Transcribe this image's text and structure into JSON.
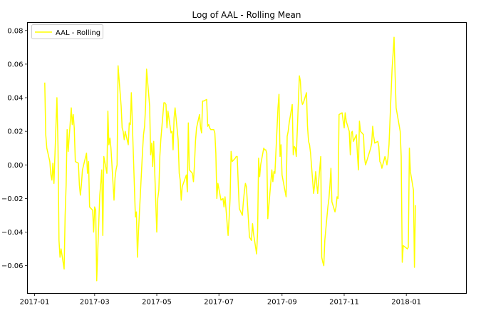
{
  "chart_data": {
    "type": "line",
    "title": "Log of AAL - Rolling Mean",
    "xlabel": "",
    "ylabel": "",
    "x_axis": {
      "type": "date",
      "range": [
        "2016-12-25",
        "2018-03-01"
      ],
      "ticks": [
        "2017-01-01",
        "2017-03-01",
        "2017-05-01",
        "2017-07-01",
        "2017-09-01",
        "2017-11-01",
        "2018-01-01"
      ],
      "tick_labels": [
        "2017-01",
        "2017-03",
        "2017-05",
        "2017-07",
        "2017-09",
        "2017-11",
        "2018-01"
      ]
    },
    "y_axis": {
      "range": [
        -0.0765,
        0.0848
      ],
      "ticks": [
        -0.06,
        -0.04,
        -0.02,
        0.0,
        0.02,
        0.04,
        0.06,
        0.08
      ],
      "tick_labels": [
        "−0.06",
        "−0.04",
        "−0.02",
        "0.00",
        "0.02",
        "0.04",
        "0.06",
        "0.08"
      ]
    },
    "grid": false,
    "legend": {
      "position": "upper left"
    },
    "series": [
      {
        "name": "AAL - Rolling",
        "color": "#ffff00",
        "points": [
          [
            "2017-01-11",
            0.049
          ],
          [
            "2017-01-12",
            0.018
          ],
          [
            "2017-01-13",
            0.01
          ],
          [
            "2017-01-16",
            0.002
          ],
          [
            "2017-01-17",
            -0.006
          ],
          [
            "2017-01-18",
            -0.009
          ],
          [
            "2017-01-19",
            0.001
          ],
          [
            "2017-01-20",
            -0.011
          ],
          [
            "2017-01-23",
            0.04
          ],
          [
            "2017-01-24",
            0.011
          ],
          [
            "2017-01-25",
            -0.045
          ],
          [
            "2017-01-26",
            -0.055
          ],
          [
            "2017-01-27",
            -0.05
          ],
          [
            "2017-01-30",
            -0.062
          ],
          [
            "2017-01-31",
            -0.03
          ],
          [
            "2017-02-01",
            -0.012
          ],
          [
            "2017-02-02",
            0.021
          ],
          [
            "2017-02-03",
            0.008
          ],
          [
            "2017-02-06",
            0.034
          ],
          [
            "2017-02-07",
            0.024
          ],
          [
            "2017-02-08",
            0.03
          ],
          [
            "2017-02-09",
            0.022
          ],
          [
            "2017-02-10",
            0.002
          ],
          [
            "2017-02-13",
            0.001
          ],
          [
            "2017-02-14",
            -0.012
          ],
          [
            "2017-02-15",
            -0.018
          ],
          [
            "2017-02-16",
            -0.012
          ],
          [
            "2017-02-17",
            -0.003
          ],
          [
            "2017-02-21",
            0.007
          ],
          [
            "2017-02-22",
            -0.005
          ],
          [
            "2017-02-23",
            0.002
          ],
          [
            "2017-02-24",
            -0.025
          ],
          [
            "2017-02-27",
            -0.027
          ],
          [
            "2017-02-28",
            -0.04
          ],
          [
            "2017-03-01",
            -0.025
          ],
          [
            "2017-03-02",
            -0.027
          ],
          [
            "2017-03-03",
            -0.069
          ],
          [
            "2017-03-06",
            -0.018
          ],
          [
            "2017-03-07",
            -0.011
          ],
          [
            "2017-03-08",
            -0.003
          ],
          [
            "2017-03-09",
            -0.042
          ],
          [
            "2017-03-10",
            0.005
          ],
          [
            "2017-03-13",
            -0.005
          ],
          [
            "2017-03-14",
            0.032
          ],
          [
            "2017-03-15",
            0.012
          ],
          [
            "2017-03-16",
            0.016
          ],
          [
            "2017-03-17",
            0.01
          ],
          [
            "2017-03-20",
            -0.021
          ],
          [
            "2017-03-21",
            -0.008
          ],
          [
            "2017-03-22",
            -0.003
          ],
          [
            "2017-03-23",
            0.0
          ],
          [
            "2017-03-24",
            0.059
          ],
          [
            "2017-03-27",
            0.035
          ],
          [
            "2017-03-28",
            0.022
          ],
          [
            "2017-03-29",
            0.02
          ],
          [
            "2017-03-30",
            0.015
          ],
          [
            "2017-03-31",
            0.02
          ],
          [
            "2017-04-03",
            0.012
          ],
          [
            "2017-04-04",
            0.025
          ],
          [
            "2017-04-05",
            0.024
          ],
          [
            "2017-04-06",
            0.043
          ],
          [
            "2017-04-07",
            0.025
          ],
          [
            "2017-04-10",
            -0.031
          ],
          [
            "2017-04-11",
            -0.028
          ],
          [
            "2017-04-12",
            -0.055
          ],
          [
            "2017-04-13",
            -0.04
          ],
          [
            "2017-04-17",
            0.008
          ],
          [
            "2017-04-18",
            0.018
          ],
          [
            "2017-04-19",
            0.023
          ],
          [
            "2017-04-20",
            0.035
          ],
          [
            "2017-04-21",
            0.057
          ],
          [
            "2017-04-24",
            0.035
          ],
          [
            "2017-04-25",
            0.006
          ],
          [
            "2017-04-26",
            0.013
          ],
          [
            "2017-04-27",
            -0.001
          ],
          [
            "2017-04-28",
            0.014
          ],
          [
            "2017-05-01",
            -0.04
          ],
          [
            "2017-05-02",
            -0.02
          ],
          [
            "2017-05-03",
            -0.015
          ],
          [
            "2017-05-04",
            0.005
          ],
          [
            "2017-05-05",
            0.015
          ],
          [
            "2017-05-08",
            0.037
          ],
          [
            "2017-05-09",
            0.037
          ],
          [
            "2017-05-10",
            0.036
          ],
          [
            "2017-05-11",
            0.022
          ],
          [
            "2017-05-12",
            0.032
          ],
          [
            "2017-05-15",
            0.019
          ],
          [
            "2017-05-16",
            0.02
          ],
          [
            "2017-05-17",
            0.009
          ],
          [
            "2017-05-18",
            0.028
          ],
          [
            "2017-05-19",
            0.034
          ],
          [
            "2017-05-22",
            0.015
          ],
          [
            "2017-05-23",
            -0.005
          ],
          [
            "2017-05-24",
            -0.009
          ],
          [
            "2017-05-25",
            -0.021
          ],
          [
            "2017-05-26",
            -0.013
          ],
          [
            "2017-05-30",
            -0.006
          ],
          [
            "2017-05-31",
            -0.016
          ],
          [
            "2017-06-01",
            0.025
          ],
          [
            "2017-06-02",
            -0.003
          ],
          [
            "2017-06-05",
            -0.005
          ],
          [
            "2017-06-06",
            -0.01
          ],
          [
            "2017-06-07",
            0.0
          ],
          [
            "2017-06-08",
            0.014
          ],
          [
            "2017-06-09",
            0.022
          ],
          [
            "2017-06-12",
            0.03
          ],
          [
            "2017-06-13",
            0.022
          ],
          [
            "2017-06-14",
            0.019
          ],
          [
            "2017-06-15",
            0.038
          ],
          [
            "2017-06-16",
            0.038
          ],
          [
            "2017-06-19",
            0.039
          ],
          [
            "2017-06-20",
            0.023
          ],
          [
            "2017-06-21",
            0.024
          ],
          [
            "2017-06-22",
            0.022
          ],
          [
            "2017-06-23",
            0.021
          ],
          [
            "2017-06-26",
            0.021
          ],
          [
            "2017-06-27",
            0.019
          ],
          [
            "2017-06-28",
            0.007
          ],
          [
            "2017-06-29",
            -0.02
          ],
          [
            "2017-06-30",
            -0.011
          ],
          [
            "2017-07-03",
            -0.021
          ],
          [
            "2017-07-05",
            -0.02
          ],
          [
            "2017-07-06",
            -0.025
          ],
          [
            "2017-07-07",
            -0.019
          ],
          [
            "2017-07-10",
            -0.042
          ],
          [
            "2017-07-11",
            -0.032
          ],
          [
            "2017-07-12",
            -0.02
          ],
          [
            "2017-07-13",
            0.008
          ],
          [
            "2017-07-14",
            0.002
          ],
          [
            "2017-07-17",
            0.004
          ],
          [
            "2017-07-18",
            0.005
          ],
          [
            "2017-07-19",
            0.005
          ],
          [
            "2017-07-20",
            -0.012
          ],
          [
            "2017-07-21",
            -0.026
          ],
          [
            "2017-07-24",
            -0.03
          ],
          [
            "2017-07-25",
            -0.022
          ],
          [
            "2017-07-26",
            -0.016
          ],
          [
            "2017-07-27",
            -0.011
          ],
          [
            "2017-07-28",
            -0.013
          ],
          [
            "2017-07-31",
            -0.043
          ],
          [
            "2017-08-01",
            -0.044
          ],
          [
            "2017-08-02",
            -0.045
          ],
          [
            "2017-08-03",
            -0.035
          ],
          [
            "2017-08-04",
            -0.041
          ],
          [
            "2017-08-07",
            -0.053
          ],
          [
            "2017-08-08",
            -0.04
          ],
          [
            "2017-08-09",
            0.004
          ],
          [
            "2017-08-10",
            -0.007
          ],
          [
            "2017-08-11",
            0.0
          ],
          [
            "2017-08-14",
            0.01
          ],
          [
            "2017-08-15",
            0.009
          ],
          [
            "2017-08-16",
            0.009
          ],
          [
            "2017-08-17",
            0.007
          ],
          [
            "2017-08-18",
            -0.032
          ],
          [
            "2017-08-21",
            -0.01
          ],
          [
            "2017-08-22",
            -0.003
          ],
          [
            "2017-08-23",
            -0.01
          ],
          [
            "2017-08-24",
            -0.004
          ],
          [
            "2017-08-25",
            -0.005
          ],
          [
            "2017-08-28",
            0.034
          ],
          [
            "2017-08-29",
            0.042
          ],
          [
            "2017-08-30",
            0.005
          ],
          [
            "2017-08-31",
            0.012
          ],
          [
            "2017-09-01",
            -0.006
          ],
          [
            "2017-09-05",
            -0.019
          ],
          [
            "2017-09-06",
            0.017
          ],
          [
            "2017-09-07",
            0.02
          ],
          [
            "2017-09-08",
            0.025
          ],
          [
            "2017-09-11",
            0.036
          ],
          [
            "2017-09-12",
            0.006
          ],
          [
            "2017-09-13",
            0.011
          ],
          [
            "2017-09-14",
            0.01
          ],
          [
            "2017-09-15",
            0.005
          ],
          [
            "2017-09-18",
            0.053
          ],
          [
            "2017-09-19",
            0.05
          ],
          [
            "2017-09-20",
            0.039
          ],
          [
            "2017-09-21",
            0.036
          ],
          [
            "2017-09-22",
            0.037
          ],
          [
            "2017-09-25",
            0.043
          ],
          [
            "2017-09-26",
            0.023
          ],
          [
            "2017-09-27",
            0.014
          ],
          [
            "2017-09-28",
            0.012
          ],
          [
            "2017-09-29",
            0.007
          ],
          [
            "2017-10-02",
            -0.017
          ],
          [
            "2017-10-03",
            -0.012
          ],
          [
            "2017-10-04",
            -0.004
          ],
          [
            "2017-10-05",
            -0.011
          ],
          [
            "2017-10-06",
            -0.017
          ],
          [
            "2017-10-09",
            0.005
          ],
          [
            "2017-10-10",
            -0.055
          ],
          [
            "2017-10-11",
            -0.058
          ],
          [
            "2017-10-12",
            -0.06
          ],
          [
            "2017-10-13",
            -0.045
          ],
          [
            "2017-10-16",
            -0.025
          ],
          [
            "2017-10-17",
            -0.02
          ],
          [
            "2017-10-18",
            -0.012
          ],
          [
            "2017-10-19",
            -0.002
          ],
          [
            "2017-10-20",
            -0.022
          ],
          [
            "2017-10-23",
            -0.028
          ],
          [
            "2017-10-24",
            -0.025
          ],
          [
            "2017-10-25",
            -0.019
          ],
          [
            "2017-10-26",
            -0.02
          ],
          [
            "2017-10-27",
            0.03
          ],
          [
            "2017-10-30",
            0.031
          ],
          [
            "2017-10-31",
            0.026
          ],
          [
            "2017-11-01",
            0.022
          ],
          [
            "2017-11-02",
            0.031
          ],
          [
            "2017-11-03",
            0.026
          ],
          [
            "2017-11-06",
            0.02
          ],
          [
            "2017-11-07",
            0.006
          ],
          [
            "2017-11-08",
            0.019
          ],
          [
            "2017-11-09",
            0.02
          ],
          [
            "2017-11-10",
            0.014
          ],
          [
            "2017-11-13",
            0.018
          ],
          [
            "2017-11-14",
            0.006
          ],
          [
            "2017-11-15",
            -0.003
          ],
          [
            "2017-11-16",
            0.026
          ],
          [
            "2017-11-17",
            0.02
          ],
          [
            "2017-11-20",
            0.018
          ],
          [
            "2017-11-21",
            0.004
          ],
          [
            "2017-11-22",
            0.0
          ],
          [
            "2017-11-24",
            0.004
          ],
          [
            "2017-11-27",
            0.01
          ],
          [
            "2017-11-28",
            0.013
          ],
          [
            "2017-11-29",
            0.023
          ],
          [
            "2017-11-30",
            0.017
          ],
          [
            "2017-12-01",
            0.013
          ],
          [
            "2017-12-04",
            0.014
          ],
          [
            "2017-12-05",
            0.011
          ],
          [
            "2017-12-06",
            0.002
          ],
          [
            "2017-12-07",
            0.001
          ],
          [
            "2017-12-08",
            -0.002
          ],
          [
            "2017-12-11",
            0.005
          ],
          [
            "2017-12-12",
            0.003
          ],
          [
            "2017-12-13",
            0.0
          ],
          [
            "2017-12-14",
            0.004
          ],
          [
            "2017-12-15",
            0.012
          ],
          [
            "2017-12-18",
            0.057
          ],
          [
            "2017-12-19",
            0.066
          ],
          [
            "2017-12-20",
            0.076
          ],
          [
            "2017-12-21",
            0.053
          ],
          [
            "2017-12-22",
            0.034
          ],
          [
            "2017-12-26",
            0.02
          ],
          [
            "2017-12-27",
            0.005
          ],
          [
            "2017-12-28",
            -0.058
          ],
          [
            "2017-12-29",
            -0.048
          ],
          [
            "2018-01-02",
            -0.05
          ],
          [
            "2018-01-03",
            -0.049
          ],
          [
            "2018-01-04",
            0.01
          ],
          [
            "2018-01-05",
            -0.004
          ],
          [
            "2018-01-08",
            -0.015
          ],
          [
            "2018-01-09",
            -0.061
          ],
          [
            "2018-01-10",
            -0.024
          ]
        ]
      }
    ]
  }
}
